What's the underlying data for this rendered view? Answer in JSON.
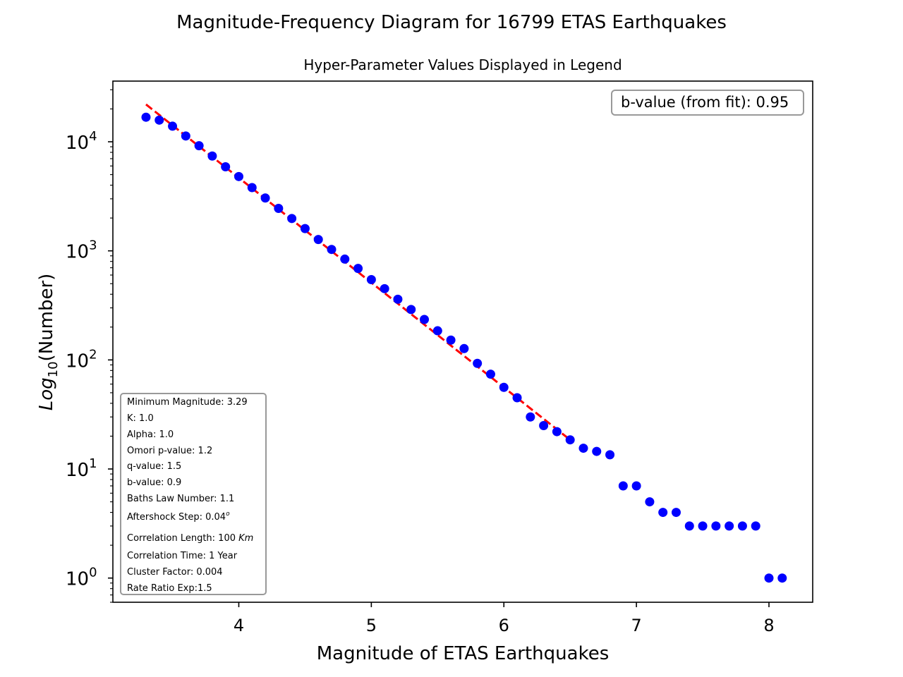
{
  "chart_data": {
    "type": "scatter",
    "title": "Magnitude-Frequency Diagram for 16799 ETAS Earthquakes",
    "subtitle": "Hyper-Parameter Values Displayed in Legend",
    "xlabel": "Magnitude of ETAS Earthquakes",
    "ylabel_prefix": "Log",
    "ylabel_sub": "10",
    "ylabel_rest": "(Number)",
    "xlim": [
      3.05,
      8.33
    ],
    "ylim": [
      0.6,
      36000
    ],
    "yscale": "log",
    "grid": false,
    "x_ticks": [
      4,
      5,
      6,
      7,
      8
    ],
    "x_tick_labels": [
      "4",
      "5",
      "6",
      "7",
      "8"
    ],
    "y_ticks": [
      1,
      10,
      100,
      1000,
      10000
    ],
    "y_tick_bases": [
      "10",
      "10",
      "10",
      "10",
      "10"
    ],
    "y_tick_exps": [
      "0",
      "1",
      "2",
      "3",
      "4"
    ],
    "series": [
      {
        "marker_color": "#0000ff",
        "x": [
          3.3,
          3.4,
          3.5,
          3.6,
          3.7,
          3.8,
          3.9,
          4.0,
          4.1,
          4.2,
          4.3,
          4.4,
          4.5,
          4.6,
          4.7,
          4.8,
          4.9,
          5.0,
          5.1,
          5.2,
          5.3,
          5.4,
          5.5,
          5.6,
          5.7,
          5.8,
          5.9,
          6.0,
          6.1,
          6.2,
          6.3,
          6.4,
          6.5,
          6.6,
          6.7,
          6.8,
          6.9,
          7.0,
          7.1,
          7.2,
          7.3,
          7.4,
          7.5,
          7.6,
          7.7,
          7.8,
          7.9,
          8.0,
          8.1
        ],
        "y": [
          16799,
          15800,
          13900,
          11300,
          9200,
          7400,
          5900,
          4800,
          3800,
          3050,
          2450,
          1980,
          1600,
          1270,
          1030,
          840,
          690,
          545,
          450,
          360,
          290,
          235,
          185,
          152,
          127,
          93,
          74,
          56,
          45,
          30,
          25,
          22,
          18.5,
          15.5,
          14.5,
          13.5,
          7,
          7,
          5,
          4,
          4,
          3,
          3,
          3,
          3,
          3,
          3,
          1,
          1
        ]
      }
    ],
    "fit_line": {
      "color": "#ff0000",
      "style": "dashed",
      "x": [
        3.3,
        6.5
      ],
      "y": [
        22000,
        18.5
      ]
    },
    "legend_fit": {
      "label": "b-value (from fit): 0.95",
      "placement": "top-right"
    },
    "legend_params": {
      "placement": "lower-left",
      "entries": [
        {
          "text": "Minimum Magnitude: 3.29"
        },
        {
          "text": "K: 1.0"
        },
        {
          "text": "Alpha: 1.0"
        },
        {
          "text": "Omori p-value: 1.2"
        },
        {
          "text": "q-value: 1.5"
        },
        {
          "text": "b-value: 0.9"
        },
        {
          "text": "Baths Law Number: 1.1"
        },
        {
          "text": "Aftershock Step: 0.04",
          "sup": "o"
        },
        {
          "text": "Correlation Length: 100 ",
          "italic": "Km"
        },
        {
          "text": "Correlation Time: 1 Year"
        },
        {
          "text": "Cluster Factor: 0.004"
        },
        {
          "text": "Rate Ratio Exp:1.5"
        }
      ]
    }
  }
}
